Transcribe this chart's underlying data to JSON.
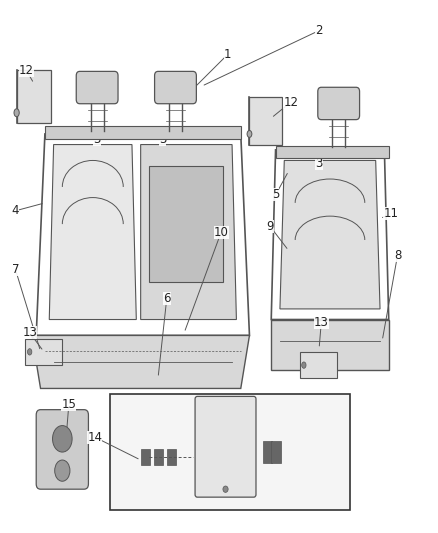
{
  "title": "",
  "bg_color": "#ffffff",
  "fig_width": 4.38,
  "fig_height": 5.33,
  "dpi": 100,
  "line_color": "#555555",
  "text_color": "#222222",
  "font_size": 8.5
}
